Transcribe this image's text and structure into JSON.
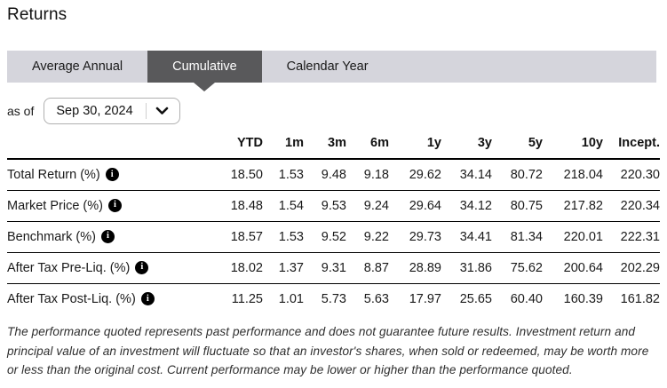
{
  "page": {
    "title": "Returns"
  },
  "tabs": [
    {
      "label": "Average Annual",
      "active": false
    },
    {
      "label": "Cumulative",
      "active": true
    },
    {
      "label": "Calendar Year",
      "active": false
    }
  ],
  "as_of": {
    "label": "as of",
    "value": "Sep 30, 2024"
  },
  "icons": {
    "chevron_down": "chevron-down-icon",
    "info": "info-icon"
  },
  "colors": {
    "tab_bar_bg": "#d5d5dc",
    "active_tab_bg": "#59595b",
    "active_tab_text": "#ffffff",
    "row_border": "#000000",
    "text": "#1a1a1a"
  },
  "chart_data": {
    "type": "table",
    "title": "Returns - Cumulative",
    "columns": [
      "YTD",
      "1m",
      "3m",
      "6m",
      "1y",
      "3y",
      "5y",
      "10y",
      "Incept."
    ],
    "rows": [
      {
        "label": "Total Return (%)",
        "values": [
          "18.50",
          "1.53",
          "9.48",
          "9.18",
          "29.62",
          "34.14",
          "80.72",
          "218.04",
          "220.30"
        ]
      },
      {
        "label": "Market Price (%)",
        "values": [
          "18.48",
          "1.54",
          "9.53",
          "9.24",
          "29.64",
          "34.12",
          "80.75",
          "217.82",
          "220.34"
        ]
      },
      {
        "label": "Benchmark (%)",
        "values": [
          "18.57",
          "1.53",
          "9.52",
          "9.22",
          "29.73",
          "34.41",
          "81.34",
          "220.01",
          "222.31"
        ]
      },
      {
        "label": "After Tax Pre-Liq. (%)",
        "values": [
          "18.02",
          "1.37",
          "9.31",
          "8.87",
          "28.89",
          "31.86",
          "75.62",
          "200.64",
          "202.29"
        ]
      },
      {
        "label": "After Tax Post-Liq. (%)",
        "values": [
          "11.25",
          "1.01",
          "5.73",
          "5.63",
          "17.97",
          "25.65",
          "60.40",
          "160.39",
          "161.82"
        ]
      }
    ]
  },
  "disclaimer": "The performance quoted represents past performance and does not guarantee future results. Investment return and principal value of an investment will fluctuate so that an investor's shares, when sold or redeemed, may be worth more or less than the original cost. Current performance may be lower or higher than the performance quoted."
}
